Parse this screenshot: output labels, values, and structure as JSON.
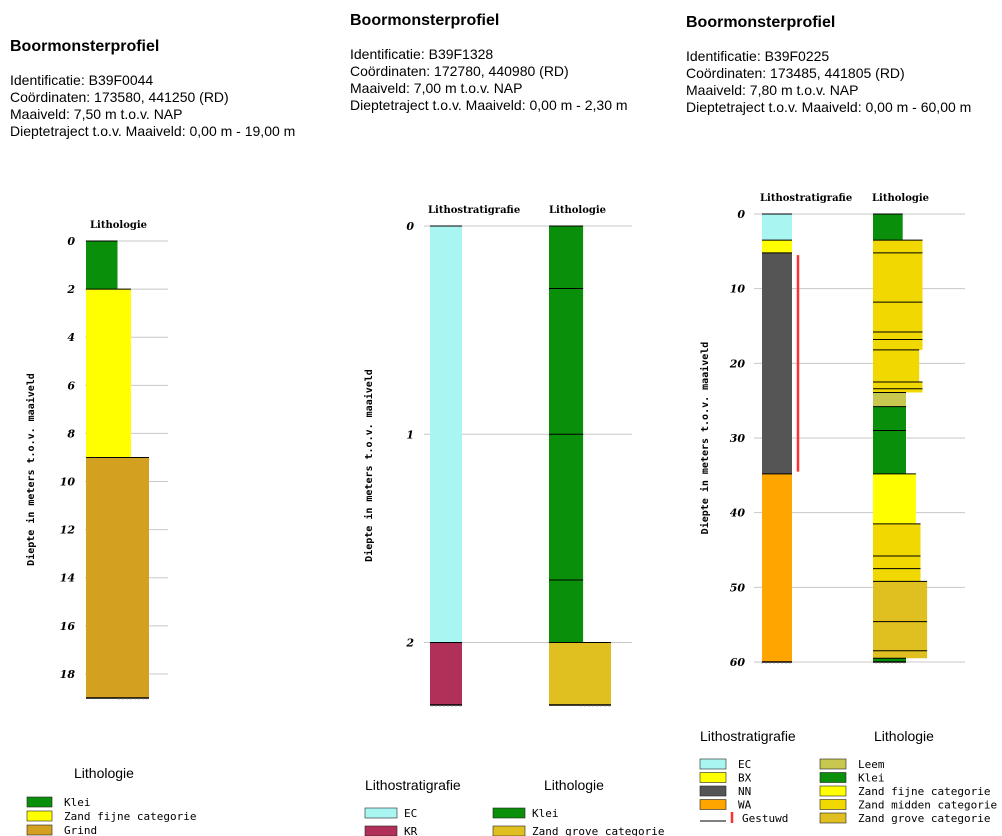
{
  "profiles": [
    {
      "header": {
        "title": "Boormonsterprofiel",
        "identificatie": "Identificatie: B39F0044",
        "coordinaten": "Coördinaten: 173580, 441250 (RD)",
        "maaiveld": "Maaiveld: 7,50 m t.o.v. NAP",
        "dieptetraject": "Dieptetraject t.o.v. Maaiveld: 0,00 m - 19,00 m"
      },
      "ylabel": "Diepte in meters t.o.v. maaiveld",
      "column_titles": [
        "Lithologie"
      ],
      "ticks": [
        0,
        2,
        4,
        6,
        8,
        10,
        12,
        14,
        16,
        18
      ],
      "ylim": [
        0,
        19
      ],
      "columns": [
        {
          "name": "Lithologie",
          "layers": [
            {
              "top": 0,
              "bottom": 2.0,
              "label": "Klei",
              "color": "#0a8f0a",
              "width": 0.35
            },
            {
              "top": 2.0,
              "bottom": 9.0,
              "label": "Zand fijne categorie",
              "color": "#ffff00",
              "width": 0.5
            },
            {
              "top": 9.0,
              "bottom": 19.0,
              "label": "Grind",
              "color": "#d4a020",
              "width": 0.7
            }
          ]
        }
      ],
      "legend": {
        "groups": [
          {
            "title": "Lithologie",
            "items": [
              {
                "label": "Klei",
                "color": "#0a8f0a"
              },
              {
                "label": "Zand fijne categorie",
                "color": "#ffff00"
              },
              {
                "label": "Grind",
                "color": "#d4a020"
              }
            ]
          }
        ]
      }
    },
    {
      "header": {
        "title": "Boormonsterprofiel",
        "identificatie": "Identificatie: B39F1328",
        "coordinaten": "Coördinaten: 172780, 440980 (RD)",
        "maaiveld": "Maaiveld: 7,00 m t.o.v. NAP",
        "dieptetraject": "Dieptetraject t.o.v. Maaiveld: 0,00 m - 2,30 m"
      },
      "ylabel": "Diepte in meters t.o.v. maaiveld",
      "column_titles": [
        "Lithostratigrafie",
        "Lithologie"
      ],
      "ticks": [
        0,
        1,
        2
      ],
      "ylim": [
        0,
        2.3
      ],
      "columns": [
        {
          "name": "Lithostratigrafie",
          "layers": [
            {
              "top": 0,
              "bottom": 2.0,
              "label": "EC",
              "color": "#a9f5f2",
              "width": 1
            },
            {
              "top": 2.0,
              "bottom": 2.3,
              "label": "KR",
              "color": "#b0305a",
              "width": 1
            }
          ]
        },
        {
          "name": "Lithologie",
          "layers": [
            {
              "top": 0,
              "bottom": 0.3,
              "label": "Klei",
              "color": "#0a8f0a",
              "width": 0.55
            },
            {
              "top": 0.3,
              "bottom": 1.0,
              "label": "Klei",
              "color": "#0a8f0a",
              "width": 0.55
            },
            {
              "top": 1.0,
              "bottom": 1.7,
              "label": "Klei",
              "color": "#0a8f0a",
              "width": 0.55
            },
            {
              "top": 1.7,
              "bottom": 2.0,
              "label": "Klei",
              "color": "#0a8f0a",
              "width": 0.55
            },
            {
              "top": 2.0,
              "bottom": 2.3,
              "label": "Zand grove categorie",
              "color": "#e0c020",
              "width": 1
            }
          ]
        }
      ],
      "legend": {
        "groups": [
          {
            "title": "Lithostratigrafie",
            "items": [
              {
                "label": "EC",
                "color": "#a9f5f2"
              },
              {
                "label": "KR",
                "color": "#b0305a"
              }
            ]
          },
          {
            "title": "Lithologie",
            "items": [
              {
                "label": "Klei",
                "color": "#0a8f0a"
              },
              {
                "label": "Zand grove categorie",
                "color": "#e0c020"
              }
            ]
          }
        ]
      }
    },
    {
      "header": {
        "title": "Boormonsterprofiel",
        "identificatie": "Identificatie: B39F0225",
        "coordinaten": "Coördinaten: 173485, 441805 (RD)",
        "maaiveld": "Maaiveld: 7,80 m t.o.v. NAP",
        "dieptetraject": "Dieptetraject t.o.v. Maaiveld: 0,00 m - 60,00 m"
      },
      "ylabel": "Diepte in meters t.o.v. maaiveld",
      "column_titles": [
        "Lithostratigrafie",
        "Lithologie"
      ],
      "ticks": [
        0,
        10,
        20,
        30,
        40,
        50,
        60
      ],
      "ylim": [
        0,
        60
      ],
      "gestuwd": {
        "top": 5.5,
        "bottom": 34.5,
        "color": "#ff3030"
      },
      "columns": [
        {
          "name": "Lithostratigrafie",
          "layers": [
            {
              "top": 0,
              "bottom": 3.5,
              "label": "EC",
              "color": "#a9f5f2",
              "width": 1
            },
            {
              "top": 3.5,
              "bottom": 5.2,
              "label": "BX",
              "color": "#ffff00",
              "width": 1
            },
            {
              "top": 5.2,
              "bottom": 34.8,
              "label": "NN",
              "color": "#555555",
              "width": 1
            },
            {
              "top": 34.8,
              "bottom": 60,
              "label": "WA",
              "color": "#ffa500",
              "width": 1
            }
          ]
        },
        {
          "name": "Lithologie",
          "layers": [
            {
              "top": 0,
              "bottom": 3.5,
              "label": "Klei",
              "color": "#0a8f0a",
              "width": 0.45
            },
            {
              "top": 3.5,
              "bottom": 5.2,
              "label": "Zand midden categorie",
              "color": "#f0d800",
              "width": 0.75
            },
            {
              "top": 5.2,
              "bottom": 11.8,
              "label": "Zand midden categorie",
              "color": "#f0d800",
              "width": 0.75
            },
            {
              "top": 11.8,
              "bottom": 15.8,
              "label": "Zand midden categorie",
              "color": "#f0d800",
              "width": 0.75
            },
            {
              "top": 15.8,
              "bottom": 16.8,
              "label": "Zand midden categorie",
              "color": "#f0d800",
              "width": 0.75
            },
            {
              "top": 16.8,
              "bottom": 18.2,
              "label": "Zand midden categorie",
              "color": "#f0d800",
              "width": 0.75
            },
            {
              "top": 18.2,
              "bottom": 22.5,
              "label": "Zand midden categorie",
              "color": "#f0d800",
              "width": 0.7
            },
            {
              "top": 22.5,
              "bottom": 23.4,
              "label": "Zand midden categorie",
              "color": "#f0d800",
              "width": 0.75
            },
            {
              "top": 23.4,
              "bottom": 23.9,
              "label": "Zand midden categorie",
              "color": "#f0d800",
              "width": 0.75
            },
            {
              "top": 23.9,
              "bottom": 25.8,
              "label": "Leem",
              "color": "#c8c850",
              "width": 0.5
            },
            {
              "top": 25.8,
              "bottom": 29.0,
              "label": "Klei",
              "color": "#0a8f0a",
              "width": 0.5
            },
            {
              "top": 29.0,
              "bottom": 34.8,
              "label": "Klei",
              "color": "#0a8f0a",
              "width": 0.5
            },
            {
              "top": 34.8,
              "bottom": 41.5,
              "label": "Zand fijne categorie",
              "color": "#ffff00",
              "width": 0.65
            },
            {
              "top": 41.5,
              "bottom": 45.8,
              "label": "Zand midden categorie",
              "color": "#f0d800",
              "width": 0.72
            },
            {
              "top": 45.8,
              "bottom": 47.5,
              "label": "Zand midden categorie",
              "color": "#f0d800",
              "width": 0.72
            },
            {
              "top": 47.5,
              "bottom": 49.2,
              "label": "Zand midden categorie",
              "color": "#f0d800",
              "width": 0.72
            },
            {
              "top": 49.2,
              "bottom": 54.6,
              "label": "Zand grove categorie",
              "color": "#e0c020",
              "width": 0.82
            },
            {
              "top": 54.6,
              "bottom": 58.5,
              "label": "Zand grove categorie",
              "color": "#e0c020",
              "width": 0.82
            },
            {
              "top": 58.5,
              "bottom": 59.5,
              "label": "Zand grove categorie",
              "color": "#e0c020",
              "width": 0.82
            },
            {
              "top": 59.5,
              "bottom": 60,
              "label": "Klei",
              "color": "#0a8f0a",
              "width": 0.5
            }
          ]
        }
      ],
      "legend": {
        "groups": [
          {
            "title": "Lithostratigrafie",
            "items": [
              {
                "label": "EC",
                "color": "#a9f5f2"
              },
              {
                "label": "BX",
                "color": "#ffff00"
              },
              {
                "label": "NN",
                "color": "#555555"
              },
              {
                "label": "WA",
                "color": "#ffa500"
              },
              {
                "label": "Gestuwd",
                "color": "",
                "kind": "gestuwd"
              }
            ]
          },
          {
            "title": "Lithologie",
            "items": [
              {
                "label": "Leem",
                "color": "#c8c850"
              },
              {
                "label": "Klei",
                "color": "#0a8f0a"
              },
              {
                "label": "Zand fijne categorie",
                "color": "#ffff00"
              },
              {
                "label": "Zand midden categorie",
                "color": "#f0d800"
              },
              {
                "label": "Zand grove categorie",
                "color": "#e0c020"
              }
            ]
          }
        ]
      }
    }
  ],
  "chart_data": [
    {
      "type": "table",
      "title": "Boormonsterprofiel",
      "ylabel": "Diepte in meters t.o.v. maaiveld",
      "ylim": [
        0,
        19
      ],
      "series": [
        {
          "name": "Lithologie",
          "intervals": [
            [
              0,
              2.0,
              "Klei"
            ],
            [
              2.0,
              9.0,
              "Zand fijne categorie"
            ],
            [
              9.0,
              19.0,
              "Grind"
            ]
          ]
        }
      ]
    },
    {
      "type": "table",
      "title": "Boormonsterprofiel",
      "ylabel": "Diepte in meters t.o.v. maaiveld",
      "ylim": [
        0,
        2.3
      ],
      "series": [
        {
          "name": "Lithostratigrafie",
          "intervals": [
            [
              0,
              2.0,
              "EC"
            ],
            [
              2.0,
              2.3,
              "KR"
            ]
          ]
        },
        {
          "name": "Lithologie",
          "intervals": [
            [
              0,
              2.0,
              "Klei"
            ],
            [
              2.0,
              2.3,
              "Zand grove categorie"
            ]
          ]
        }
      ]
    },
    {
      "type": "table",
      "title": "Boormonsterprofiel",
      "ylabel": "Diepte in meters t.o.v. maaiveld",
      "ylim": [
        0,
        60
      ],
      "series": [
        {
          "name": "Lithostratigrafie",
          "intervals": [
            [
              0,
              3.5,
              "EC"
            ],
            [
              3.5,
              5.2,
              "BX"
            ],
            [
              5.2,
              34.8,
              "NN"
            ],
            [
              34.8,
              60,
              "WA"
            ]
          ]
        },
        {
          "name": "Lithologie",
          "intervals": [
            [
              0,
              3.5,
              "Klei"
            ],
            [
              3.5,
              23.9,
              "Zand midden categorie"
            ],
            [
              23.9,
              25.8,
              "Leem"
            ],
            [
              25.8,
              34.8,
              "Klei"
            ],
            [
              34.8,
              41.5,
              "Zand fijne categorie"
            ],
            [
              41.5,
              49.2,
              "Zand midden categorie"
            ],
            [
              49.2,
              59.5,
              "Zand grove categorie"
            ],
            [
              59.5,
              60,
              "Klei"
            ]
          ]
        },
        {
          "name": "Gestuwd",
          "intervals": [
            [
              5.5,
              34.5,
              "Gestuwd"
            ]
          ]
        }
      ]
    }
  ]
}
